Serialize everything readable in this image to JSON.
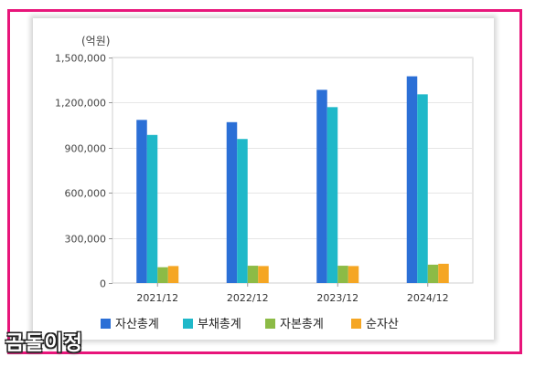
{
  "chart_data": {
    "type": "bar",
    "unit_label": "(억원)",
    "categories": [
      "2021/12",
      "2022/12",
      "2023/12",
      "2024/12"
    ],
    "series": [
      {
        "name": "자산총계",
        "color": "#2b6fd6",
        "values": [
          1085000,
          1070000,
          1285000,
          1375000
        ]
      },
      {
        "name": "부채총계",
        "color": "#1fb8c9",
        "values": [
          985000,
          958000,
          1170000,
          1255000
        ]
      },
      {
        "name": "자본총계",
        "color": "#8cbb46",
        "values": [
          105000,
          115000,
          115000,
          122000
        ]
      },
      {
        "name": "순자산",
        "color": "#f5a623",
        "values": [
          113000,
          113000,
          113000,
          128000
        ]
      }
    ],
    "ylim": [
      0,
      1500000
    ],
    "yticks": [
      0,
      300000,
      600000,
      900000,
      1200000,
      1500000
    ],
    "ytick_labels": [
      "0",
      "300,000",
      "600,000",
      "900,000",
      "1,200,000",
      "1,500,000"
    ],
    "grid": true,
    "legend_position": "bottom"
  },
  "watermark": "곰돌이정"
}
